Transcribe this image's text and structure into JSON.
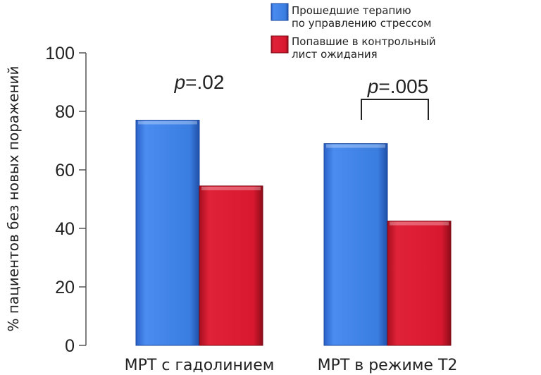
{
  "chart_data": {
    "type": "bar",
    "title": "",
    "xlabel": "",
    "ylabel": "% пациентов без новых поражений",
    "ylim": [
      0,
      100
    ],
    "yticks": [
      "0",
      "20",
      "40",
      "60",
      "80",
      "100"
    ],
    "categories": [
      "МРТ с гадолинием",
      "МРТ в режиме Т2"
    ],
    "series": [
      {
        "name": "Прошедшие терапию по управлению стрессом",
        "legend_lines": [
          "Прошедшие терапию",
          "по управлению стрессом"
        ],
        "values": [
          77,
          69
        ],
        "color": "#3a7de0"
      },
      {
        "name": "Попавшие в контрольный лист ожидания",
        "legend_lines": [
          "Попавшие в контрольный",
          "лист ожидания"
        ],
        "values": [
          54.5,
          42.5
        ],
        "color": "#d8182e"
      }
    ],
    "annotations": [
      {
        "category": 0,
        "prefix": "p",
        "text": "=.02"
      },
      {
        "category": 1,
        "prefix": "p",
        "text": "=.005",
        "bracket": true
      }
    ],
    "legend_position": "top-right",
    "grid": false
  }
}
